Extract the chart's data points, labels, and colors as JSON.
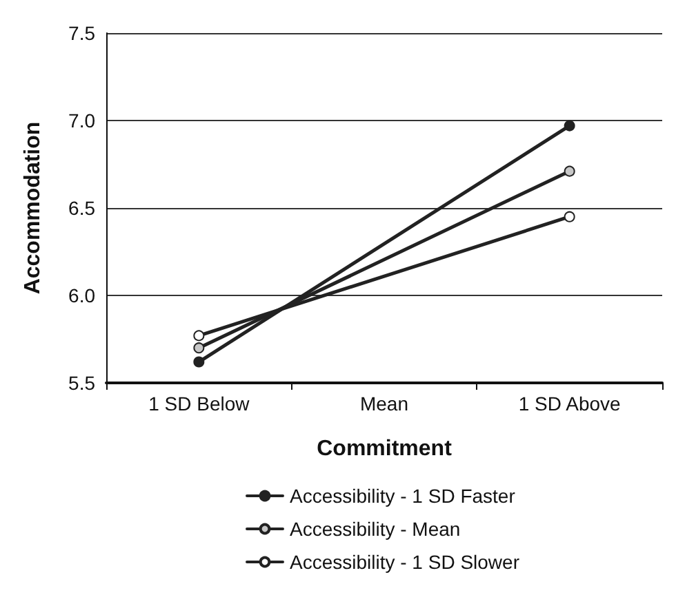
{
  "chart_data": {
    "type": "line",
    "xlabel": "Commitment",
    "ylabel": "Accommodation",
    "categories": [
      "1 SD Below",
      "Mean",
      "1 SD Above"
    ],
    "series": [
      {
        "name": "Accessibility - 1 SD Faster",
        "color": "#222222",
        "values": [
          5.62,
          null,
          6.97
        ]
      },
      {
        "name": "Accessibility - Mean",
        "color": "#c8c8c8",
        "values": [
          5.7,
          null,
          6.71
        ]
      },
      {
        "name": "Accessibility - 1 SD Slower",
        "color": "#ffffff",
        "values": [
          5.77,
          null,
          6.45
        ]
      }
    ],
    "ylim": [
      5.5,
      7.5
    ],
    "yticks": [
      5.5,
      {
        "value": 6,
        "label": "6.0"
      },
      6.5,
      {
        "value": 7,
        "label": "7.0"
      },
      7.5
    ],
    "grid": "y",
    "legend": "bottom",
    "marker": "circle",
    "line_style": "solid"
  }
}
